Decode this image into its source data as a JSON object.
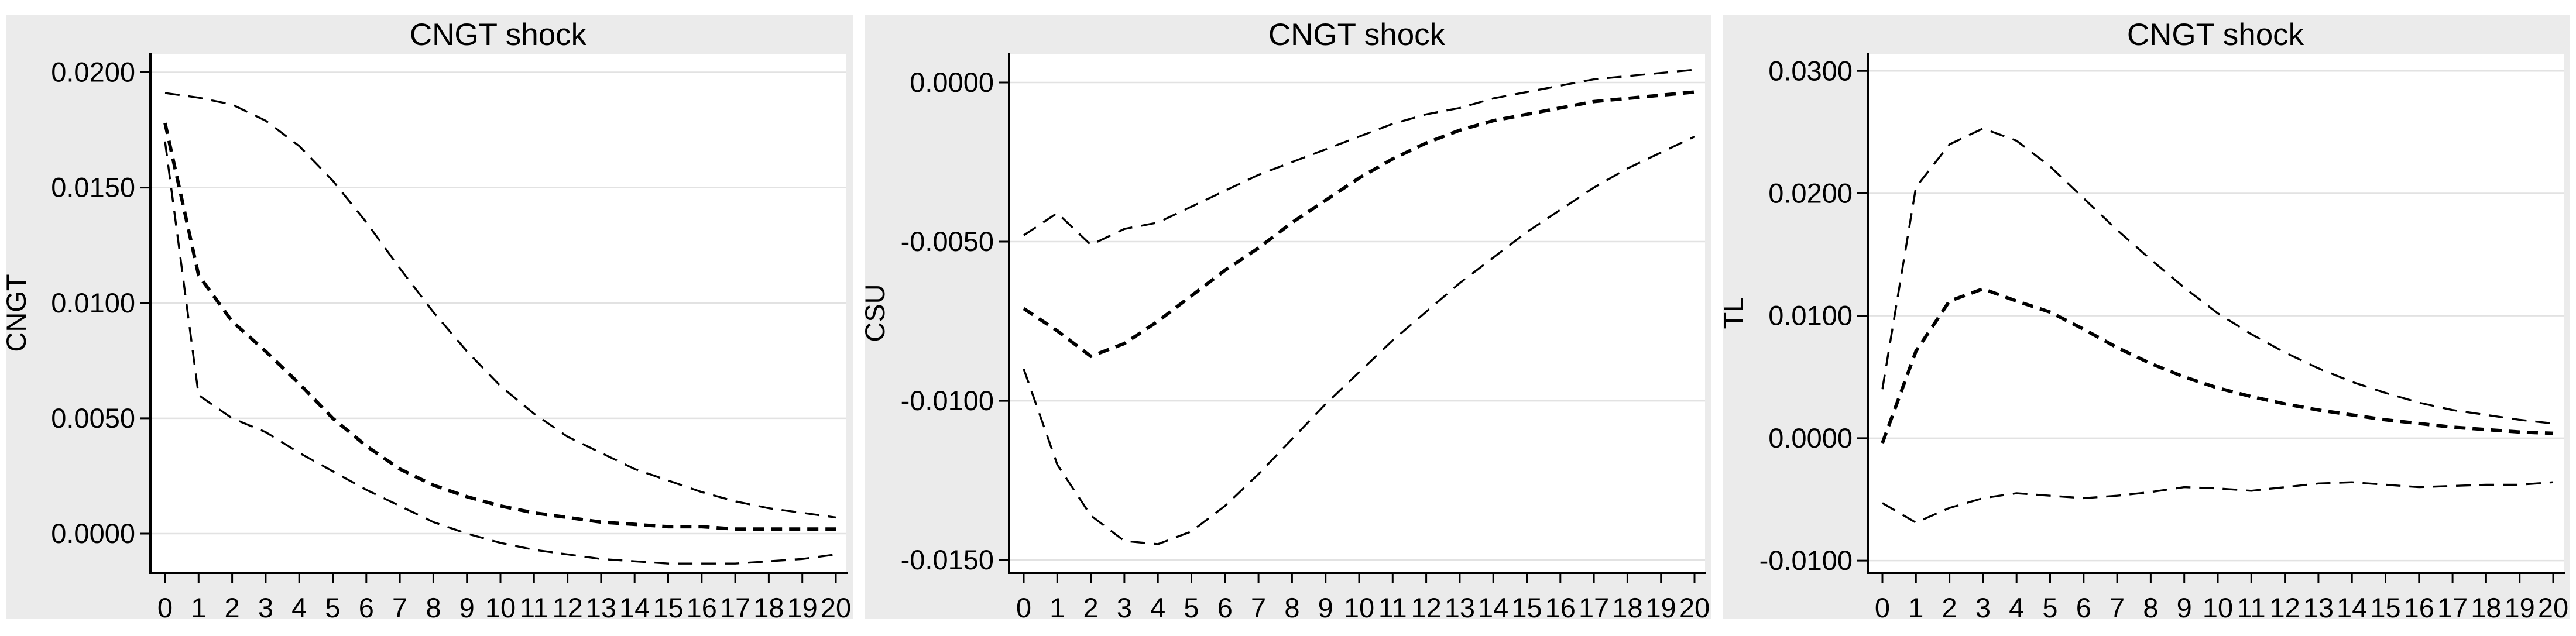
{
  "figure": {
    "background_color": "#ffffff",
    "panel_background_color": "#ebebeb",
    "plot_background_color": "#ffffff",
    "grid_color": "#e2e2e2",
    "line_color": "#000000"
  },
  "chart_data": [
    {
      "type": "line",
      "title": "CNGT shock",
      "xlabel": "",
      "ylabel": "CNGT",
      "x": [
        0,
        1,
        2,
        3,
        4,
        5,
        6,
        7,
        8,
        9,
        10,
        11,
        12,
        13,
        14,
        15,
        16,
        17,
        18,
        19,
        20
      ],
      "xtick_labels": [
        "0",
        "1",
        "2",
        "3",
        "4",
        "5",
        "6",
        "7",
        "8",
        "9",
        "10",
        "11",
        "12",
        "13",
        "14",
        "15",
        "16",
        "17",
        "18",
        "19",
        "20"
      ],
      "ytick_values": [
        0.0,
        0.005,
        0.01,
        0.015,
        0.02
      ],
      "ytick_labels": [
        "0.0000",
        "0.0050",
        "0.0100",
        "0.0150",
        "0.0200"
      ],
      "ylim": [
        -0.0017,
        0.0208
      ],
      "xlim": [
        -0.44,
        20.31
      ],
      "grid": "horizontal",
      "legend": "none",
      "series": [
        {
          "name": "upper-band",
          "style": "ci",
          "values": [
            0.0191,
            0.0189,
            0.0186,
            0.0179,
            0.0168,
            0.0153,
            0.0135,
            0.0115,
            0.0096,
            0.0079,
            0.0064,
            0.0052,
            0.0042,
            0.0035,
            0.0028,
            0.0023,
            0.0018,
            0.0014,
            0.0011,
            0.0009,
            0.0007
          ]
        },
        {
          "name": "irf",
          "style": "irf",
          "values": [
            0.0178,
            0.0112,
            0.0092,
            0.0079,
            0.0065,
            0.005,
            0.0038,
            0.0028,
            0.0021,
            0.0016,
            0.0012,
            0.0009,
            0.0007,
            0.0005,
            0.0004,
            0.0003,
            0.0003,
            0.0002,
            0.0002,
            0.0002,
            0.0002
          ]
        },
        {
          "name": "lower-band",
          "style": "ci",
          "values": [
            0.017,
            0.006,
            0.005,
            0.0044,
            0.0035,
            0.0027,
            0.0019,
            0.0012,
            0.0005,
            0.0,
            -0.0004,
            -0.0007,
            -0.0009,
            -0.0011,
            -0.0012,
            -0.0013,
            -0.0013,
            -0.0013,
            -0.0012,
            -0.0011,
            -0.0009
          ]
        }
      ]
    },
    {
      "type": "line",
      "title": "CNGT shock",
      "xlabel": "",
      "ylabel": "CSU",
      "x": [
        0,
        1,
        2,
        3,
        4,
        5,
        6,
        7,
        8,
        9,
        10,
        11,
        12,
        13,
        14,
        15,
        16,
        17,
        18,
        19,
        20
      ],
      "xtick_labels": [
        "0",
        "1",
        "2",
        "3",
        "4",
        "5",
        "6",
        "7",
        "8",
        "9",
        "10",
        "11",
        "12",
        "13",
        "14",
        "15",
        "16",
        "17",
        "18",
        "19",
        "20"
      ],
      "ytick_values": [
        0.0,
        -0.005,
        -0.01,
        -0.015
      ],
      "ytick_labels": [
        "0.0000",
        "-0.0050",
        "-0.0100",
        "-0.0150"
      ],
      "ylim": [
        -0.0154,
        0.0009
      ],
      "xlim": [
        -0.44,
        20.31
      ],
      "grid": "horizontal",
      "legend": "none",
      "series": [
        {
          "name": "upper-band",
          "style": "ci",
          "values": [
            -0.0048,
            -0.0041,
            -0.0051,
            -0.0046,
            -0.0044,
            -0.0039,
            -0.0034,
            -0.0029,
            -0.0025,
            -0.0021,
            -0.0017,
            -0.0013,
            -0.001,
            -0.0008,
            -0.0005,
            -0.0003,
            -0.0001,
            0.0001,
            0.0002,
            0.0003,
            0.0004
          ]
        },
        {
          "name": "irf",
          "style": "irf",
          "values": [
            -0.0071,
            -0.0078,
            -0.0086,
            -0.0082,
            -0.0075,
            -0.0067,
            -0.0059,
            -0.0052,
            -0.0044,
            -0.0037,
            -0.003,
            -0.0024,
            -0.0019,
            -0.0015,
            -0.0012,
            -0.001,
            -0.0008,
            -0.0006,
            -0.0005,
            -0.0004,
            -0.0003
          ]
        },
        {
          "name": "lower-band",
          "style": "ci",
          "values": [
            -0.009,
            -0.012,
            -0.0136,
            -0.0144,
            -0.0145,
            -0.0141,
            -0.0133,
            -0.0123,
            -0.0112,
            -0.0101,
            -0.0091,
            -0.0081,
            -0.0072,
            -0.0063,
            -0.0055,
            -0.0047,
            -0.004,
            -0.0033,
            -0.0027,
            -0.0022,
            -0.0017
          ]
        }
      ]
    },
    {
      "type": "line",
      "title": "CNGT shock",
      "xlabel": "",
      "ylabel": "TL",
      "x": [
        0,
        1,
        2,
        3,
        4,
        5,
        6,
        7,
        8,
        9,
        10,
        11,
        12,
        13,
        14,
        15,
        16,
        17,
        18,
        19,
        20
      ],
      "xtick_labels": [
        "0",
        "1",
        "2",
        "3",
        "4",
        "5",
        "6",
        "7",
        "8",
        "9",
        "10",
        "11",
        "12",
        "13",
        "14",
        "15",
        "16",
        "17",
        "18",
        "19",
        "20"
      ],
      "ytick_values": [
        0.03,
        0.02,
        0.01,
        0.0,
        -0.01
      ],
      "ytick_labels": [
        "0.0300",
        "0.0200",
        "0.0100",
        "0.0000",
        "-0.0100"
      ],
      "ylim": [
        -0.011,
        0.0314
      ],
      "xlim": [
        -0.44,
        20.31
      ],
      "grid": "horizontal",
      "legend": "none",
      "series": [
        {
          "name": "upper-band",
          "style": "ci",
          "values": [
            0.004,
            0.0205,
            0.024,
            0.0253,
            0.0243,
            0.0222,
            0.0196,
            0.017,
            0.0146,
            0.0123,
            0.0102,
            0.0085,
            0.007,
            0.0057,
            0.0046,
            0.0037,
            0.0029,
            0.0023,
            0.0019,
            0.0015,
            0.0012
          ]
        },
        {
          "name": "irf",
          "style": "irf",
          "values": [
            -0.0004,
            0.0071,
            0.0112,
            0.0122,
            0.0112,
            0.0103,
            0.0089,
            0.0074,
            0.0061,
            0.005,
            0.0041,
            0.0034,
            0.0028,
            0.0023,
            0.0019,
            0.0015,
            0.0012,
            0.0009,
            0.0007,
            0.0005,
            0.0004
          ]
        },
        {
          "name": "lower-band",
          "style": "ci",
          "values": [
            -0.0053,
            -0.0069,
            -0.0057,
            -0.0049,
            -0.0045,
            -0.0047,
            -0.0049,
            -0.0047,
            -0.0044,
            -0.004,
            -0.0041,
            -0.0043,
            -0.004,
            -0.0037,
            -0.0036,
            -0.0038,
            -0.004,
            -0.0039,
            -0.0038,
            -0.0038,
            -0.0036
          ]
        }
      ]
    }
  ]
}
